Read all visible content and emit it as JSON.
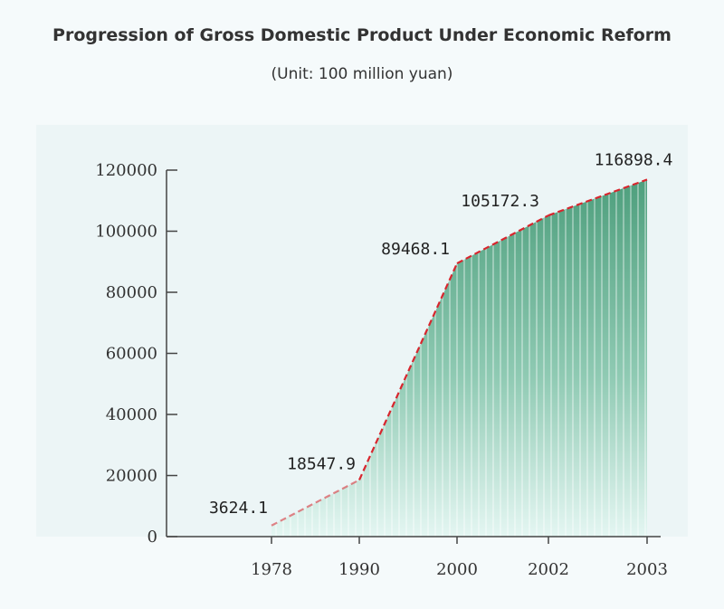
{
  "header": {
    "title": "Progression of Gross Domestic Product Under Economic Reform",
    "subtitle": "(Unit: 100 million yuan)"
  },
  "chart_data": {
    "type": "area",
    "title": "Progression of Gross Domestic Product Under Economic Reform",
    "subtitle": "(Unit: 100 million yuan)",
    "categories": [
      "1978",
      "1990",
      "2000",
      "2002",
      "2003"
    ],
    "values": [
      3624.1,
      18547.9,
      89468.1,
      105172.3,
      116898.4
    ],
    "data_labels": [
      "3624.1",
      "18547.9",
      "89468.1",
      "105172.3",
      "116898.4"
    ],
    "yticks": [
      "0",
      "20000",
      "40000",
      "60000",
      "80000",
      "100000",
      "120000"
    ],
    "ylim": [
      0,
      120000
    ],
    "grid": false,
    "colors": {
      "line": "#d8262e",
      "fill_top": "#4e9f7d",
      "fill_bottom": "#e4f6f2"
    }
  }
}
